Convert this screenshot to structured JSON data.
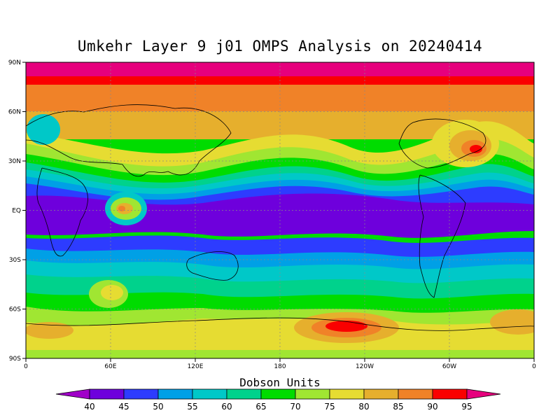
{
  "title": "Umkehr Layer 9 j01 OMPS Analysis on 20240414",
  "lat_ticks": [
    "90N",
    "60N",
    "30N",
    "EQ",
    "30S",
    "60S",
    "90S"
  ],
  "lon_ticks": [
    "0",
    "60E",
    "120E",
    "180",
    "120W",
    "60W",
    "0"
  ],
  "colorbar": {
    "title": "Dobson Units",
    "levels": [
      40,
      45,
      50,
      55,
      60,
      65,
      70,
      75,
      80,
      85,
      90,
      95
    ],
    "colors": [
      "#a000c8",
      "#6e00dc",
      "#2d3cff",
      "#00a0e6",
      "#00c8c8",
      "#00d28c",
      "#00dc00",
      "#a0e632",
      "#e6dc32",
      "#e6af2d",
      "#f08228",
      "#fa0000",
      "#e6007d"
    ]
  }
}
